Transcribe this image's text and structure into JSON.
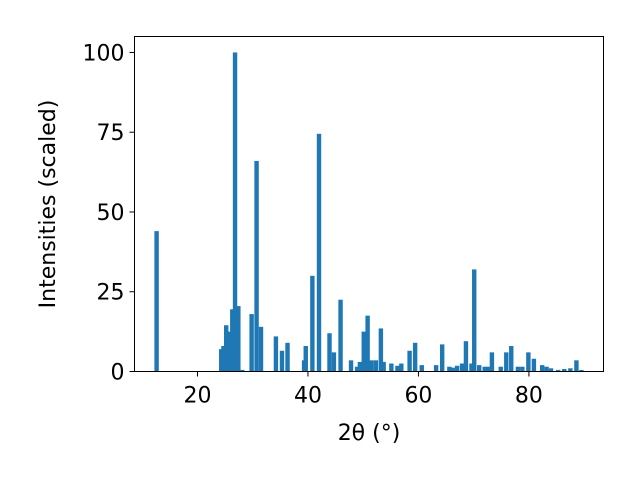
{
  "chart_data": {
    "type": "bar",
    "xlabel": "2θ (°)",
    "ylabel": "Intensities (scaled)",
    "xlim": [
      8.6,
      93.5
    ],
    "ylim": [
      0,
      105
    ],
    "x_ticks": [
      20,
      40,
      60,
      80
    ],
    "y_ticks": [
      0,
      25,
      50,
      75,
      100
    ],
    "bar_color": "#1f77b4",
    "grid": false,
    "legend": "none",
    "x": [
      12.6,
      24.3,
      24.7,
      25.2,
      25.6,
      26.3,
      26.8,
      27.4,
      28.1,
      29.8,
      30.7,
      31.5,
      34.2,
      35.3,
      36.3,
      39.3,
      39.6,
      40.8,
      42.0,
      43.9,
      44.7,
      45.9,
      47.8,
      48.9,
      49.4,
      50.1,
      50.8,
      51.5,
      52.3,
      53.2,
      53.7,
      55.1,
      56.2,
      56.9,
      58.4,
      59.4,
      60.6,
      63.2,
      64.3,
      65.6,
      66.2,
      67.0,
      67.9,
      68.6,
      69.6,
      70.1,
      71.0,
      72.0,
      72.6,
      73.3,
      74.9,
      75.9,
      76.8,
      78.0,
      78.8,
      79.9,
      80.9,
      82.4,
      83.2,
      84.0,
      85.3,
      86.4,
      87.5,
      88.6,
      89.5
    ],
    "values": [
      44,
      7,
      8,
      14.5,
      12.5,
      19.5,
      100,
      20.5,
      0.5,
      18,
      66,
      14,
      11,
      6.5,
      9,
      3.5,
      8,
      30,
      74.5,
      12,
      6,
      22.5,
      3.5,
      1.5,
      3,
      12.5,
      17.5,
      3.5,
      3.5,
      13.5,
      3,
      2.5,
      1.8,
      2.5,
      6.5,
      9,
      2,
      2,
      8.5,
      1.5,
      1.2,
      1.8,
      2.5,
      9.5,
      2.5,
      32,
      2,
      1.5,
      1.5,
      6,
      1.5,
      6,
      8,
      1.5,
      1.5,
      6,
      4,
      2,
      1.5,
      1,
      0.5,
      0.8,
      1,
      3.5,
      0.5
    ]
  }
}
